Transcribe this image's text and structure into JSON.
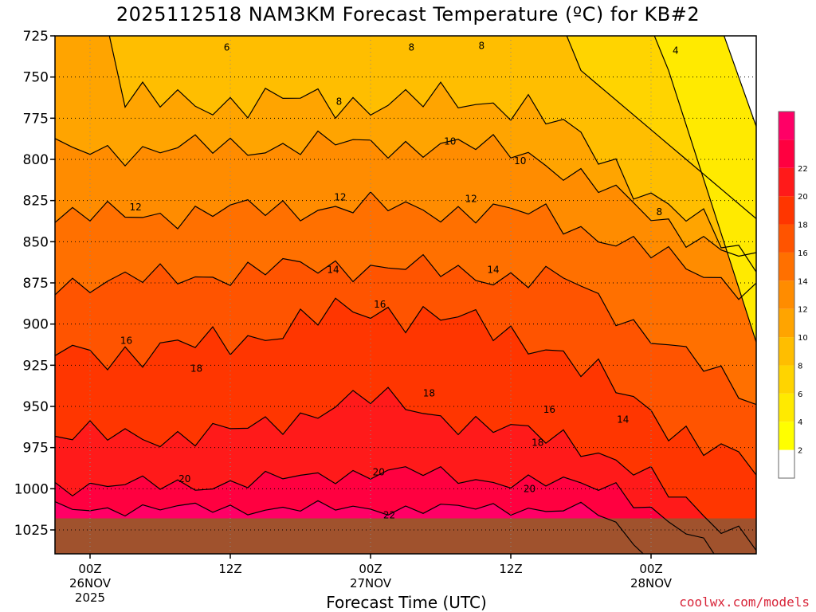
{
  "chart_data": {
    "type": "heatmap",
    "title": "2025112518 NAM3KM Forecast Temperature (ºC) for KB#2",
    "xlabel": "Forecast Time (UTC)",
    "ylabel": "",
    "credit": "coolwx.com/models",
    "y_ticks": [
      "725",
      "750",
      "775",
      "800",
      "825",
      "850",
      "875",
      "900",
      "925",
      "950",
      "975",
      "1000",
      "1025"
    ],
    "y_range_hPa": [
      725,
      1025
    ],
    "x_ticks": [
      {
        "lines": [
          "00Z",
          "26NOV",
          "2025"
        ]
      },
      {
        "lines": [
          "12Z"
        ]
      },
      {
        "lines": [
          "00Z",
          "27NOV"
        ]
      },
      {
        "lines": [
          "12Z"
        ]
      },
      {
        "lines": [
          "00Z",
          "28NOV"
        ]
      }
    ],
    "x_range_hours_since_start": [
      0,
      60
    ],
    "grid": true,
    "colorbar": {
      "levels": [
        2,
        4,
        6,
        8,
        10,
        12,
        14,
        16,
        18,
        20,
        22
      ],
      "colors": [
        "#ffffff",
        "#ffff00",
        "#ffea00",
        "#ffd400",
        "#ffbe00",
        "#ffa400",
        "#ff8c00",
        "#ff7000",
        "#ff5400",
        "#ff3600",
        "#ff1a1a",
        "#ff0040",
        "#ff0066"
      ],
      "units": "ºC"
    },
    "contour_labels": [
      {
        "value": "4",
        "x_hours": 53.1,
        "y_hPa": 734
      },
      {
        "value": "6",
        "x_hours": 14.7,
        "y_hPa": 732
      },
      {
        "value": "8",
        "x_hours": 30.5,
        "y_hPa": 732
      },
      {
        "value": "8",
        "x_hours": 36.5,
        "y_hPa": 731
      },
      {
        "value": "8",
        "x_hours": 24.3,
        "y_hPa": 765
      },
      {
        "value": "8",
        "x_hours": 51.7,
        "y_hPa": 832
      },
      {
        "value": "10",
        "x_hours": 33.8,
        "y_hPa": 789
      },
      {
        "value": "10",
        "x_hours": 39.8,
        "y_hPa": 801
      },
      {
        "value": "12",
        "x_hours": 6.9,
        "y_hPa": 829
      },
      {
        "value": "12",
        "x_hours": 24.4,
        "y_hPa": 823
      },
      {
        "value": "12",
        "x_hours": 35.6,
        "y_hPa": 824
      },
      {
        "value": "14",
        "x_hours": 23.8,
        "y_hPa": 867
      },
      {
        "value": "14",
        "x_hours": 37.5,
        "y_hPa": 867
      },
      {
        "value": "14",
        "x_hours": 48.6,
        "y_hPa": 958
      },
      {
        "value": "16",
        "x_hours": 6.1,
        "y_hPa": 910
      },
      {
        "value": "16",
        "x_hours": 27.8,
        "y_hPa": 888
      },
      {
        "value": "16",
        "x_hours": 42.3,
        "y_hPa": 952
      },
      {
        "value": "18",
        "x_hours": 12.1,
        "y_hPa": 927
      },
      {
        "value": "18",
        "x_hours": 32.0,
        "y_hPa": 942
      },
      {
        "value": "18",
        "x_hours": 41.3,
        "y_hPa": 972
      },
      {
        "value": "20",
        "x_hours": 11.1,
        "y_hPa": 994
      },
      {
        "value": "20",
        "x_hours": 27.7,
        "y_hPa": 990
      },
      {
        "value": "20",
        "x_hours": 40.6,
        "y_hPa": 1000
      },
      {
        "value": "22",
        "x_hours": 28.6,
        "y_hPa": 1016
      }
    ],
    "bands": [
      {
        "color": "#ffa400",
        "top": 725,
        "level": 725,
        "hours": [
          0,
          60
        ]
      },
      {
        "color": "#ffbe00",
        "level": 0,
        "hours": [
          0,
          60
        ]
      },
      {
        "color": "#ffd400",
        "level": 0,
        "hours": [
          0,
          60
        ]
      },
      {
        "color": "#ffea00",
        "level": 0,
        "hours": [
          0,
          60
        ]
      },
      {
        "color": "#ffff00",
        "level": 0,
        "hours": [
          0,
          60
        ]
      },
      {
        "color": "#ffffff",
        "level": 0,
        "hours": [
          0,
          60
        ]
      }
    ],
    "surface_color": "#a0522d"
  }
}
